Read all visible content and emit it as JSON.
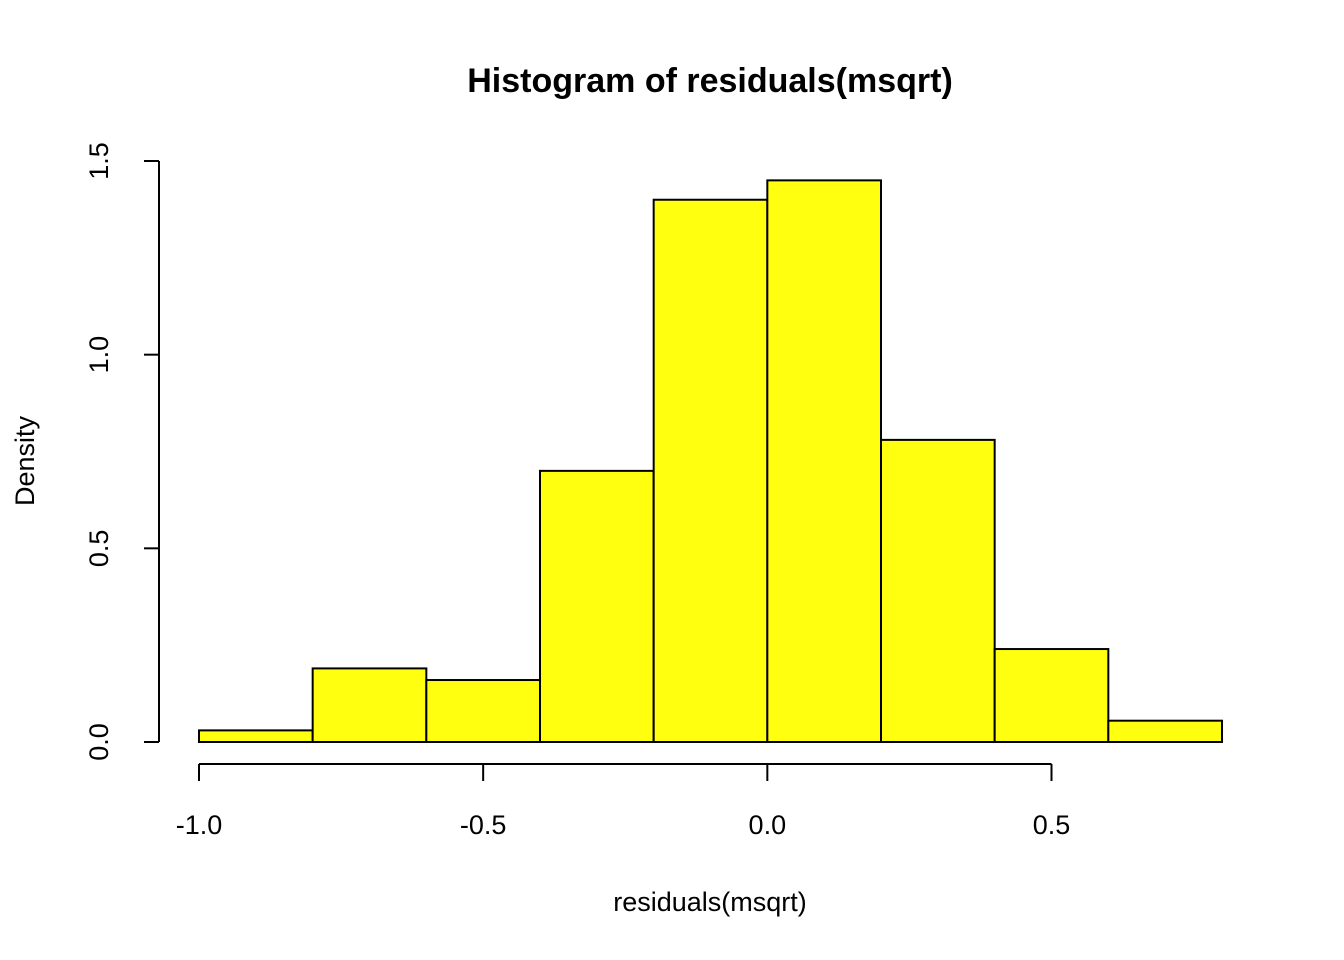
{
  "chart_data": {
    "type": "bar",
    "subtype": "histogram",
    "title": "Histogram of residuals(msqrt)",
    "xlabel": "residuals(msqrt)",
    "ylabel": "Density",
    "bin_edges": [
      -1.0,
      -0.8,
      -0.6,
      -0.4,
      -0.2,
      0.0,
      0.2,
      0.4,
      0.6,
      0.8
    ],
    "values": [
      0.03,
      0.19,
      0.16,
      0.7,
      1.4,
      1.45,
      0.78,
      0.24,
      0.055
    ],
    "xlim": [
      -1.0,
      0.8
    ],
    "ylim": [
      0,
      1.5
    ],
    "xticks": [
      -1.0,
      -0.5,
      0.0,
      0.5
    ],
    "xtick_labels": [
      "-1.0",
      "-0.5",
      "0.0",
      "0.5"
    ],
    "yticks": [
      0.0,
      0.5,
      1.0,
      1.5
    ],
    "ytick_labels": [
      "0.0",
      "0.5",
      "1.0",
      "1.5"
    ],
    "bar_color": "#ffff0f",
    "edge_color": "#000000",
    "grid": false
  }
}
